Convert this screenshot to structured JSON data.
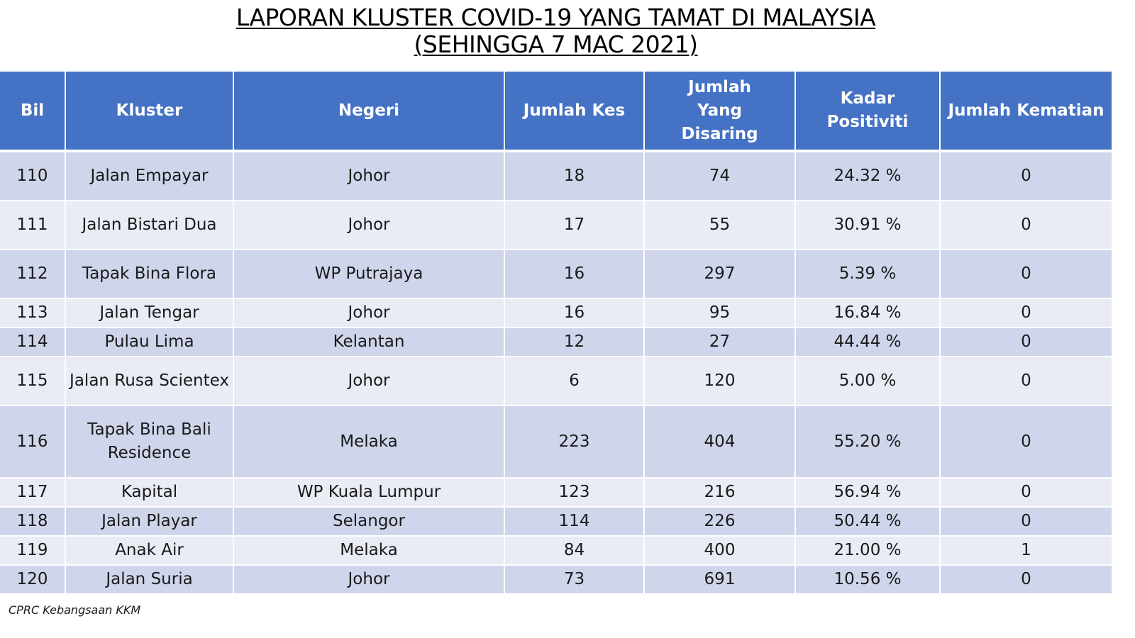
{
  "title": {
    "line1": "LAPORAN KLUSTER COVID-19 YANG TAMAT DI MALAYSIA",
    "line2": "(SEHINGGA  7 MAC 2021)"
  },
  "table": {
    "headers": [
      "Bil",
      "Kluster",
      "Negeri",
      "Jumlah Kes",
      "Jumlah Yang Disaring",
      "Kadar Positiviti",
      "Jumlah Kematian"
    ],
    "rows": [
      [
        "110",
        "Jalan Empayar",
        "Johor",
        "18",
        "74",
        "24.32 %",
        "0"
      ],
      [
        "111",
        "Jalan Bistari Dua",
        "Johor",
        "17",
        "55",
        "30.91 %",
        "0"
      ],
      [
        "112",
        "Tapak Bina Flora",
        "WP Putrajaya",
        "16",
        "297",
        "5.39 %",
        "0"
      ],
      [
        "113",
        "Jalan Tengar",
        "Johor",
        "16",
        "95",
        "16.84 %",
        "0"
      ],
      [
        "114",
        "Pulau Lima",
        "Kelantan",
        "12",
        "27",
        "44.44 %",
        "0"
      ],
      [
        "115",
        "Jalan Rusa Scientex",
        "Johor",
        "6",
        "120",
        "5.00 %",
        "0"
      ],
      [
        "116",
        "Tapak Bina Bali Residence",
        "Melaka",
        "223",
        "404",
        "55.20 %",
        "0"
      ],
      [
        "117",
        "Kapital",
        "WP Kuala Lumpur",
        "123",
        "216",
        "56.94 %",
        "0"
      ],
      [
        "118",
        "Jalan Playar",
        "Selangor",
        "114",
        "226",
        "50.44 %",
        "0"
      ],
      [
        "119",
        "Anak Air",
        "Melaka",
        "84",
        "400",
        "21.00 %",
        "1"
      ],
      [
        "120",
        "Jalan Suria",
        "Johor",
        "73",
        "691",
        "10.56 %",
        "0"
      ]
    ]
  },
  "footer": "CPRC Kebangsaan KKM",
  "colors": {
    "header_bg": "#4472c4",
    "row_dark": "#cfd5ea",
    "row_light": "#e9ebf5"
  }
}
